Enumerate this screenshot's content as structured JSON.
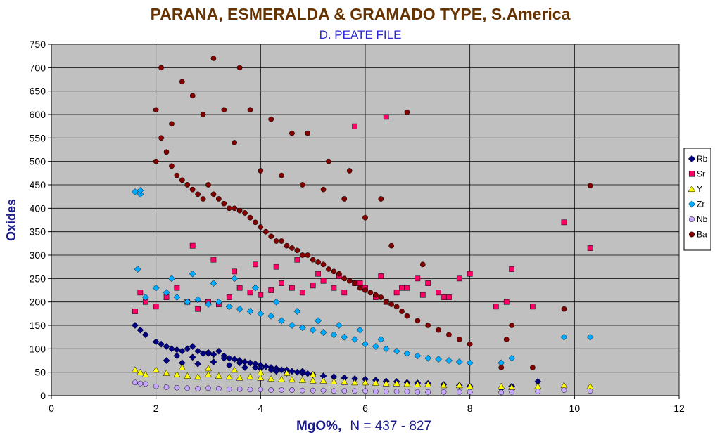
{
  "chart_data": {
    "type": "scatter",
    "title": "PARANA, ESMERALDA & GRAMADO TYPE, S.America",
    "subtitle": "D. PEATE FILE",
    "xlabel_main": "MgO%,",
    "xlabel_note": "N = 437 - 827",
    "ylabel": "Oxides",
    "xlim": [
      0,
      12
    ],
    "ylim": [
      0,
      750
    ],
    "x_ticks": [
      "0",
      "2",
      "4",
      "6",
      "8",
      "10",
      "12"
    ],
    "y_ticks": [
      "0",
      "50",
      "100",
      "150",
      "200",
      "250",
      "300",
      "350",
      "400",
      "450",
      "500",
      "550",
      "600",
      "650",
      "700",
      "750"
    ],
    "grid": true,
    "plot_background": "#c0c0c0",
    "legend_position": "right",
    "series": [
      {
        "name": "Rb",
        "marker": "diamond",
        "color": "#000080",
        "x": [
          1.6,
          1.7,
          1.8,
          2.0,
          2.1,
          2.2,
          2.3,
          2.4,
          2.5,
          2.6,
          2.7,
          2.8,
          2.9,
          3.0,
          3.1,
          3.2,
          3.3,
          3.4,
          3.5,
          3.6,
          3.7,
          3.8,
          3.9,
          4.0,
          4.1,
          4.2,
          4.3,
          4.4,
          4.5,
          4.6,
          4.7,
          4.8,
          4.9,
          5.0,
          5.2,
          5.4,
          5.6,
          5.8,
          6.0,
          6.2,
          6.4,
          6.6,
          6.8,
          7.0,
          7.2,
          7.5,
          7.8,
          8.0,
          8.6,
          8.8,
          9.3,
          2.2,
          2.5,
          2.8,
          3.1,
          3.4,
          3.7,
          4.0,
          4.3,
          2.4,
          2.7,
          3.0,
          3.3,
          3.6,
          3.9,
          4.2,
          4.5,
          4.8
        ],
        "y": [
          150,
          140,
          130,
          115,
          110,
          105,
          100,
          98,
          95,
          100,
          105,
          95,
          90,
          92,
          88,
          95,
          85,
          80,
          78,
          75,
          72,
          70,
          68,
          65,
          62,
          60,
          58,
          55,
          55,
          52,
          50,
          48,
          47,
          45,
          42,
          40,
          38,
          36,
          35,
          33,
          31,
          30,
          28,
          27,
          26,
          24,
          22,
          20,
          15,
          20,
          30,
          75,
          70,
          68,
          72,
          65,
          60,
          58,
          52,
          85,
          82,
          90,
          80,
          70,
          60,
          55,
          48,
          52
        ]
      },
      {
        "name": "Sr",
        "marker": "square",
        "color": "#ff0066",
        "x": [
          1.6,
          1.7,
          1.8,
          2.0,
          2.2,
          2.4,
          2.6,
          2.8,
          3.0,
          3.2,
          3.4,
          3.6,
          3.8,
          4.0,
          4.2,
          4.4,
          4.6,
          4.8,
          5.0,
          5.2,
          5.4,
          5.6,
          5.8,
          6.0,
          6.2,
          6.4,
          6.6,
          6.8,
          7.0,
          7.2,
          7.4,
          7.6,
          7.8,
          8.0,
          8.5,
          8.7,
          8.8,
          9.2,
          9.8,
          10.3,
          5.8,
          6.4,
          2.7,
          3.1,
          3.5,
          3.9,
          4.3,
          4.7,
          5.1,
          5.5,
          5.9,
          6.3,
          6.7,
          7.1,
          7.5
        ],
        "y": [
          180,
          220,
          200,
          190,
          210,
          230,
          200,
          185,
          200,
          195,
          210,
          230,
          220,
          215,
          225,
          240,
          230,
          220,
          235,
          245,
          230,
          220,
          240,
          230,
          210,
          200,
          220,
          230,
          250,
          240,
          220,
          210,
          250,
          260,
          190,
          200,
          270,
          190,
          370,
          315,
          575,
          595,
          320,
          290,
          265,
          280,
          275,
          290,
          260,
          255,
          240,
          255,
          230,
          215,
          210
        ]
      },
      {
        "name": "Y",
        "marker": "triangle",
        "color": "#ffff00",
        "x": [
          1.6,
          1.7,
          1.8,
          2.0,
          2.2,
          2.4,
          2.6,
          2.8,
          3.0,
          3.2,
          3.4,
          3.6,
          3.8,
          4.0,
          4.2,
          4.4,
          4.6,
          4.8,
          5.0,
          5.2,
          5.4,
          5.6,
          5.8,
          6.0,
          6.2,
          6.4,
          6.6,
          6.8,
          7.0,
          7.2,
          7.5,
          7.8,
          8.0,
          8.6,
          8.8,
          9.3,
          9.8,
          10.3,
          2.5,
          3.0,
          3.5,
          4.0,
          4.5,
          5.0
        ],
        "y": [
          55,
          50,
          45,
          55,
          48,
          45,
          42,
          40,
          45,
          42,
          40,
          38,
          40,
          38,
          36,
          35,
          34,
          33,
          32,
          32,
          30,
          29,
          28,
          28,
          27,
          26,
          26,
          25,
          24,
          24,
          22,
          22,
          20,
          20,
          18,
          20,
          22,
          20,
          60,
          58,
          55,
          50,
          48,
          45
        ]
      },
      {
        "name": "Zr",
        "marker": "diamond",
        "color": "#00aaff",
        "x": [
          1.6,
          1.7,
          1.7,
          1.8,
          2.0,
          2.2,
          2.4,
          2.6,
          2.8,
          3.0,
          3.2,
          3.4,
          3.6,
          3.8,
          4.0,
          4.2,
          4.4,
          4.6,
          4.8,
          5.0,
          5.2,
          5.4,
          5.6,
          5.8,
          6.0,
          6.2,
          6.4,
          6.6,
          6.8,
          7.0,
          7.2,
          7.4,
          7.6,
          7.8,
          8.0,
          8.6,
          8.8,
          9.8,
          10.3,
          2.3,
          2.7,
          3.1,
          3.5,
          3.9,
          4.3,
          4.7,
          5.1,
          5.5,
          5.9,
          6.3,
          1.65
        ],
        "y": [
          435,
          430,
          438,
          210,
          230,
          220,
          210,
          200,
          205,
          195,
          200,
          190,
          185,
          180,
          175,
          170,
          160,
          150,
          145,
          140,
          135,
          130,
          125,
          120,
          110,
          105,
          100,
          95,
          90,
          85,
          80,
          78,
          75,
          72,
          70,
          70,
          80,
          125,
          125,
          250,
          260,
          240,
          250,
          230,
          200,
          180,
          160,
          150,
          140,
          120,
          270
        ]
      },
      {
        "name": "Nb",
        "marker": "circle",
        "color": "#c7a6ff",
        "x": [
          1.6,
          1.7,
          1.8,
          2.0,
          2.2,
          2.4,
          2.6,
          2.8,
          3.0,
          3.2,
          3.4,
          3.6,
          3.8,
          4.0,
          4.2,
          4.4,
          4.6,
          4.8,
          5.0,
          5.2,
          5.4,
          5.6,
          5.8,
          6.0,
          6.2,
          6.4,
          6.6,
          6.8,
          7.0,
          7.2,
          7.5,
          7.8,
          8.0,
          8.6,
          8.8,
          9.3,
          9.8,
          10.3
        ],
        "y": [
          28,
          26,
          25,
          20,
          18,
          17,
          16,
          15,
          16,
          15,
          14,
          14,
          13,
          13,
          12,
          12,
          12,
          11,
          11,
          11,
          10,
          10,
          10,
          10,
          9,
          9,
          9,
          9,
          8,
          8,
          8,
          8,
          8,
          7,
          8,
          9,
          12,
          10
        ]
      },
      {
        "name": "Ba",
        "marker": "circle",
        "color": "#800000",
        "x": [
          2.0,
          2.0,
          2.1,
          2.2,
          2.3,
          2.4,
          2.5,
          2.6,
          2.7,
          2.8,
          2.9,
          3.0,
          3.1,
          3.2,
          3.3,
          3.4,
          3.5,
          3.6,
          3.7,
          3.8,
          3.9,
          4.0,
          4.1,
          4.2,
          4.3,
          4.4,
          4.5,
          4.6,
          4.7,
          4.8,
          4.9,
          5.0,
          5.1,
          5.2,
          5.3,
          5.4,
          5.5,
          5.6,
          5.7,
          5.8,
          5.9,
          6.0,
          6.1,
          6.2,
          6.3,
          6.4,
          6.5,
          6.6,
          6.7,
          6.8,
          7.0,
          7.2,
          7.4,
          7.6,
          7.8,
          8.0,
          8.6,
          8.7,
          8.8,
          9.2,
          9.8,
          10.3,
          2.1,
          2.7,
          3.1,
          3.6,
          3.8,
          4.2,
          4.6,
          4.9,
          5.3,
          5.7,
          6.3,
          6.8,
          2.3,
          2.5,
          2.9,
          3.3,
          3.5,
          4.0,
          4.4,
          4.8,
          5.2,
          5.6,
          6.0,
          6.5,
          7.1
        ],
        "y": [
          610,
          500,
          550,
          520,
          490,
          470,
          460,
          450,
          440,
          430,
          420,
          450,
          430,
          420,
          410,
          400,
          400,
          395,
          390,
          380,
          370,
          360,
          350,
          340,
          330,
          330,
          320,
          315,
          310,
          300,
          300,
          290,
          285,
          280,
          270,
          265,
          260,
          250,
          245,
          240,
          230,
          225,
          220,
          215,
          210,
          200,
          195,
          190,
          180,
          170,
          160,
          150,
          140,
          130,
          120,
          110,
          60,
          120,
          150,
          60,
          185,
          448,
          700,
          640,
          720,
          700,
          610,
          590,
          560,
          560,
          500,
          480,
          420,
          605,
          580,
          670,
          600,
          610,
          540,
          480,
          470,
          450,
          440,
          420,
          380,
          320,
          280
        ]
      }
    ]
  }
}
